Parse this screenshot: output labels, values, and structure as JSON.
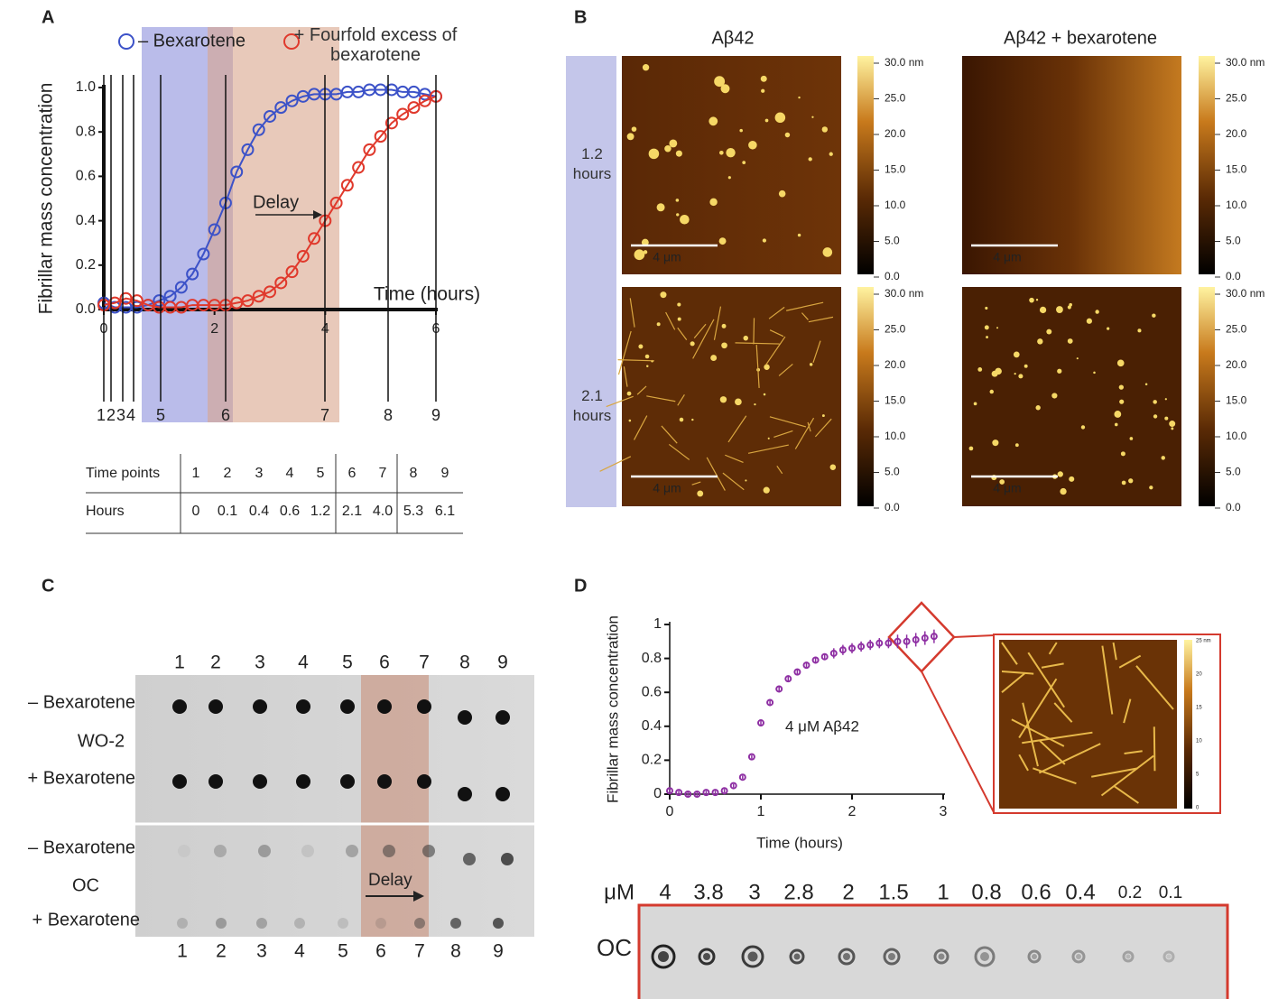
{
  "panel_labels": [
    "A",
    "B",
    "C",
    "D"
  ],
  "chart_data": [
    {
      "type": "scatter",
      "y_label": "Fibrillar mass concentration",
      "x_label": "Time (hours)",
      "annotation": "Delay",
      "xlim": [
        0,
        6
      ],
      "ylim": [
        0,
        1
      ],
      "xticks": [
        0,
        2,
        4,
        6
      ],
      "yticks": [
        {
          "value": 0,
          "label": "0.0"
        },
        0.2,
        0.4,
        0.6,
        0.8,
        {
          "value": 1,
          "label": "1.0"
        }
      ],
      "x": [
        0,
        0.2,
        0.4,
        0.6,
        0.8,
        1.0,
        1.2,
        1.4,
        1.6,
        1.8,
        2.0,
        2.2,
        2.4,
        2.6,
        2.8,
        3.0,
        3.2,
        3.4,
        3.6,
        3.8,
        4.0,
        4.2,
        4.4,
        4.6,
        4.8,
        5.0,
        5.2,
        5.4,
        5.6,
        5.8,
        6.0
      ],
      "series": [
        {
          "name": "– Bexarotene",
          "color": "#3c52c8",
          "values": [
            0.03,
            0.01,
            0.01,
            0.01,
            0.02,
            0.04,
            0.06,
            0.1,
            0.16,
            0.25,
            0.36,
            0.48,
            0.62,
            0.72,
            0.81,
            0.87,
            0.91,
            0.94,
            0.96,
            0.97,
            0.97,
            0.97,
            0.98,
            0.98,
            0.99,
            0.99,
            0.99,
            0.98,
            0.98,
            0.97,
            0.96
          ]
        },
        {
          "name": "+ Fourfold excess of bexarotene",
          "color": "#e0392c",
          "values": [
            0.02,
            0.03,
            0.05,
            0.04,
            0.02,
            0.01,
            0.01,
            0.01,
            0.02,
            0.02,
            0.02,
            0.02,
            0.03,
            0.04,
            0.06,
            0.08,
            0.12,
            0.17,
            0.24,
            0.32,
            0.4,
            0.48,
            0.56,
            0.64,
            0.72,
            0.78,
            0.84,
            0.88,
            0.91,
            0.94,
            0.96
          ]
        }
      ]
    },
    {
      "type": "scatter",
      "y_label": "Fibrillar mass concentration",
      "x_label": "Time (hours)",
      "annotation": "4 μM Aβ42",
      "xlim": [
        0,
        3
      ],
      "ylim": [
        0,
        1
      ],
      "xticks": [
        0,
        1,
        2,
        3
      ],
      "yticks": [
        0,
        0.2,
        0.4,
        0.6,
        0.8,
        1
      ],
      "x": [
        0,
        0.1,
        0.2,
        0.3,
        0.4,
        0.5,
        0.6,
        0.7,
        0.8,
        0.9,
        1.0,
        1.1,
        1.2,
        1.3,
        1.4,
        1.5,
        1.6,
        1.7,
        1.8,
        1.9,
        2.0,
        2.1,
        2.2,
        2.3,
        2.4,
        2.5,
        2.6,
        2.7,
        2.8,
        2.9
      ],
      "series": [
        {
          "color": "#8e2fa3",
          "values": [
            0.02,
            0.01,
            0.0,
            0.0,
            0.01,
            0.01,
            0.02,
            0.05,
            0.1,
            0.22,
            0.42,
            0.54,
            0.62,
            0.68,
            0.72,
            0.76,
            0.79,
            0.81,
            0.83,
            0.85,
            0.86,
            0.87,
            0.88,
            0.89,
            0.89,
            0.9,
            0.9,
            0.91,
            0.92,
            0.93
          ],
          "errors": [
            0.01,
            0.01,
            0.01,
            0.01,
            0.01,
            0.01,
            0.01,
            0.01,
            0.01,
            0.01,
            0.02,
            0.02,
            0.02,
            0.02,
            0.02,
            0.02,
            0.02,
            0.02,
            0.03,
            0.03,
            0.03,
            0.03,
            0.03,
            0.03,
            0.03,
            0.04,
            0.04,
            0.04,
            0.04,
            0.04
          ]
        }
      ]
    }
  ],
  "time_table": {
    "header": "Time points",
    "row_label": "Hours",
    "points": [
      "1",
      "2",
      "3",
      "4",
      "5",
      "6",
      "7",
      "8",
      "9"
    ],
    "hours": [
      "0",
      "0.1",
      "0.4",
      "0.6",
      "1.2",
      "2.1",
      "4.0",
      "5.3",
      "6.1"
    ]
  },
  "afm": {
    "columns": [
      "Aβ42",
      "Aβ42 + bexarotene"
    ],
    "rows": [
      "1.2 hours",
      "2.1 hours"
    ],
    "colorbar": [
      "30.0 nm",
      "25.0",
      "20.0",
      "15.0",
      "10.0",
      "5.0",
      "0.0"
    ],
    "scale": "4 μm"
  },
  "blot_c": {
    "lanes": [
      "1",
      "2",
      "3",
      "4",
      "5",
      "6",
      "7",
      "8",
      "9"
    ],
    "labels": [
      "– Bexarotene",
      "WO-2",
      "+ Bexarotene",
      "– Bexarotene",
      "OC",
      "+ Bexarotene"
    ],
    "annotation": "Delay"
  },
  "inset": {
    "colorbar": [
      "25 nm",
      "20",
      "15",
      "10",
      "5",
      "0"
    ]
  },
  "blot_d": {
    "unit": "μM",
    "concentrations": [
      "4",
      "3.8",
      "3",
      "2.8",
      "2",
      "1.5",
      "1",
      "0.8",
      "0.6",
      "0.4",
      "0.2",
      "0.1"
    ],
    "antibody": "OC"
  }
}
